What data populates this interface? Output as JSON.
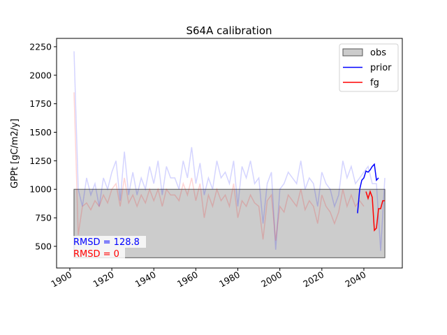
{
  "chart_data": {
    "type": "line",
    "title": "S64A calibration",
    "y_label": "GPPt [gC/m2/y]",
    "xlim": [
      1893.7,
      2058.3
    ],
    "ylim": [
      310,
      2323
    ],
    "xticks": [
      1900,
      1920,
      1940,
      1960,
      1980,
      2000,
      2020,
      2040
    ],
    "yticks": [
      500,
      750,
      1000,
      1250,
      1500,
      1750,
      2000,
      2250
    ],
    "legend": "upper right",
    "series": [
      {
        "name": "obs",
        "type": "band",
        "color": "#cccccc",
        "x": [
          1902,
          2050
        ],
        "low": 400,
        "high": 1000
      },
      {
        "name": "prior",
        "color": "#0000ff",
        "x": [
          2037,
          2038,
          2039,
          2040,
          2041,
          2042,
          2043,
          2044,
          2045,
          2046,
          2047
        ],
        "values": [
          790,
          1000,
          1080,
          1100,
          1160,
          1150,
          1170,
          1200,
          1220,
          1080,
          1100
        ],
        "history": {
          "x": [
            1902,
            1904,
            1906,
            1908,
            1910,
            1912,
            1914,
            1916,
            1918,
            1920,
            1922,
            1924,
            1926,
            1928,
            1930,
            1932,
            1934,
            1936,
            1938,
            1940,
            1942,
            1944,
            1946,
            1948,
            1950,
            1952,
            1954,
            1956,
            1958,
            1960,
            1962,
            1964,
            1966,
            1968,
            1970,
            1972,
            1974,
            1976,
            1978,
            1980,
            1982,
            1984,
            1986,
            1988,
            1990,
            1992,
            1994,
            1996,
            1998,
            2000,
            2002,
            2004,
            2006,
            2008,
            2010,
            2012,
            2014,
            2016,
            2018,
            2020,
            2022,
            2024,
            2026,
            2028,
            2030,
            2032,
            2034,
            2036,
            2038,
            2040,
            2042,
            2044,
            2046,
            2048,
            2050
          ],
          "values": [
            2210,
            1000,
            850,
            1100,
            950,
            1050,
            850,
            1100,
            1000,
            1150,
            1250,
            900,
            1330,
            950,
            1150,
            950,
            1100,
            1000,
            1200,
            1050,
            1250,
            950,
            1200,
            1100,
            1100,
            1000,
            1250,
            1100,
            1370,
            1050,
            1230,
            950,
            1100,
            1000,
            1250,
            1100,
            1150,
            1050,
            1250,
            850,
            1200,
            1100,
            1250,
            1050,
            1100,
            700,
            1050,
            1150,
            470,
            1000,
            1050,
            1150,
            1100,
            1050,
            1250,
            1000,
            1100,
            1050,
            850,
            1150,
            1050,
            1000,
            850,
            950,
            1250,
            1100,
            1200,
            1050,
            1100,
            1150,
            1200,
            1050,
            1050,
            460,
            1100
          ]
        }
      },
      {
        "name": "fg",
        "color": "#ff0000",
        "x": [
          2041,
          2042,
          2043,
          2044,
          2045,
          2046,
          2047,
          2048,
          2049,
          2050
        ],
        "values": [
          980,
          920,
          980,
          930,
          640,
          660,
          830,
          830,
          900,
          900
        ],
        "history": {
          "x": [
            1902,
            1904,
            1906,
            1908,
            1910,
            1912,
            1914,
            1916,
            1918,
            1920,
            1922,
            1924,
            1926,
            1928,
            1930,
            1932,
            1934,
            1936,
            1938,
            1940,
            1942,
            1944,
            1946,
            1948,
            1950,
            1952,
            1954,
            1956,
            1958,
            1960,
            1962,
            1964,
            1966,
            1968,
            1970,
            1972,
            1974,
            1976,
            1978,
            1980,
            1982,
            1984,
            1986,
            1988,
            1990,
            1992,
            1994,
            1996,
            1998,
            2000,
            2002,
            2004,
            2006,
            2008,
            2010,
            2012,
            2014,
            2016,
            2018,
            2020,
            2022,
            2024,
            2026,
            2028,
            2030,
            2032,
            2034,
            2036,
            2038,
            2040
          ],
          "values": [
            1850,
            600,
            850,
            880,
            820,
            900,
            850,
            950,
            880,
            1000,
            1050,
            850,
            1100,
            880,
            950,
            850,
            950,
            880,
            1000,
            900,
            1000,
            850,
            1000,
            950,
            950,
            900,
            1050,
            950,
            1100,
            900,
            1050,
            750,
            950,
            850,
            1000,
            900,
            950,
            850,
            1050,
            750,
            900,
            850,
            950,
            880,
            850,
            560,
            900,
            950,
            550,
            850,
            800,
            950,
            900,
            850,
            1000,
            820,
            900,
            850,
            700,
            950,
            850,
            800,
            700,
            800,
            1000,
            850,
            950,
            850,
            900,
            850
          ]
        }
      }
    ],
    "annotations": [
      {
        "text": "RMSD = 128.8",
        "color": "#0000ff"
      },
      {
        "text": "RMSD = 0",
        "color": "#ff0000"
      }
    ]
  }
}
